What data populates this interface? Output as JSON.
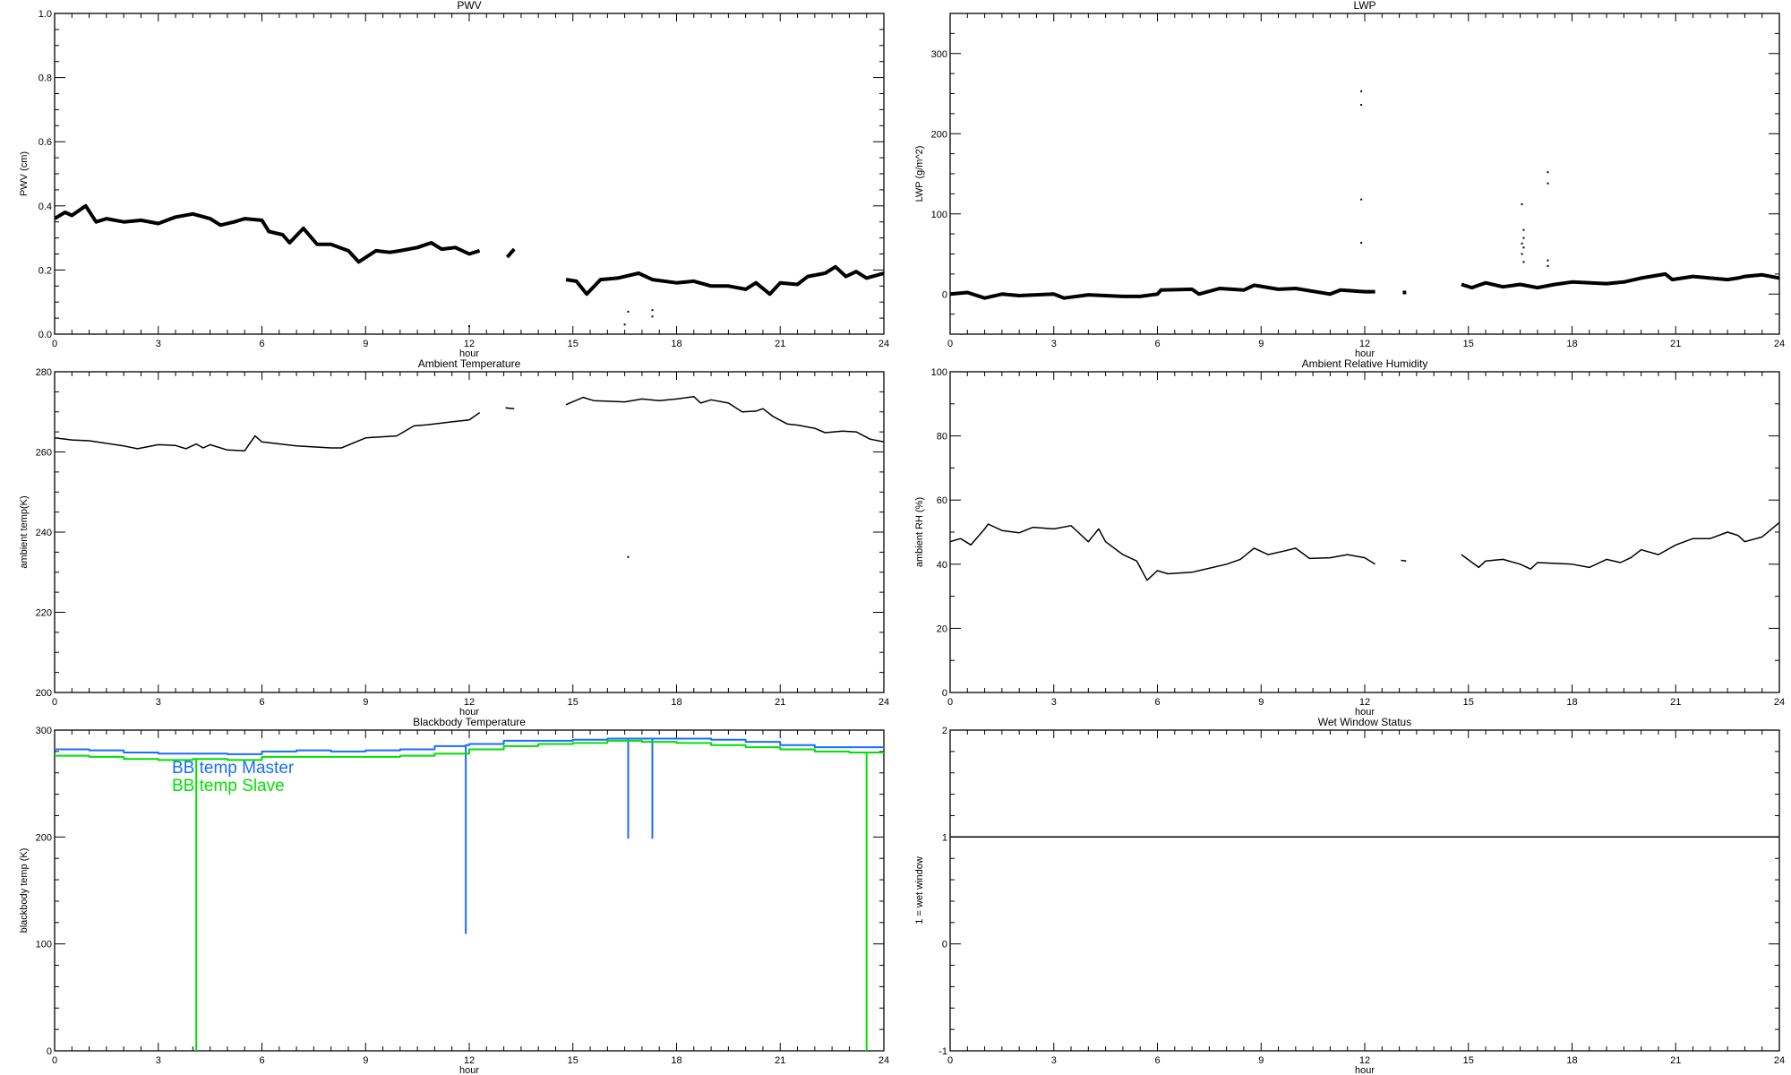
{
  "chart_data": [
    {
      "type": "line",
      "title": "PWV",
      "xlabel": "hour",
      "ylabel": "PWV (cm)",
      "xlim": [
        0,
        24
      ],
      "ylim": [
        0,
        1
      ],
      "xticks": [
        "0",
        "3",
        "6",
        "9",
        "12",
        "15",
        "18",
        "21",
        "24"
      ],
      "yticks": [
        {
          "v": 0,
          "t": "0.0"
        },
        {
          "v": 0.2,
          "t": "0.2"
        },
        {
          "v": 0.4,
          "t": "0.4"
        },
        {
          "v": 0.6,
          "t": "0.6"
        },
        {
          "v": 0.8,
          "t": "0.8"
        },
        {
          "v": 1,
          "t": "1.0"
        }
      ],
      "yminor": 0.05,
      "series": [
        {
          "color": "#000000",
          "style": "noisy",
          "x": [
            0,
            0.3,
            0.5,
            0.9,
            1.2,
            1.5,
            2,
            2.5,
            3,
            3.5,
            4,
            4.5,
            4.8,
            5.2,
            5.5,
            6,
            6.2,
            6.6,
            6.8,
            7.2,
            7.6,
            8,
            8.5,
            8.8,
            9.3,
            9.7,
            10,
            10.5,
            10.9,
            11.2,
            11.6,
            12,
            12.3,
            null,
            13.1,
            13.3,
            null,
            14.8,
            15.1,
            15.4,
            15.8,
            16.3,
            16.9,
            17.3,
            18,
            18.5,
            19,
            19.5,
            20,
            20.3,
            20.7,
            21,
            21.5,
            21.8,
            22.3,
            22.6,
            22.9,
            23.2,
            23.5,
            24
          ],
          "y": [
            0.36,
            0.38,
            0.37,
            0.4,
            0.35,
            0.36,
            0.35,
            0.355,
            0.345,
            0.365,
            0.375,
            0.36,
            0.34,
            0.35,
            0.36,
            0.355,
            0.32,
            0.31,
            0.285,
            0.33,
            0.28,
            0.28,
            0.26,
            0.225,
            0.26,
            0.255,
            0.26,
            0.27,
            0.285,
            0.265,
            0.27,
            0.25,
            0.26,
            null,
            0.24,
            0.265,
            null,
            0.17,
            0.165,
            0.125,
            0.17,
            0.175,
            0.19,
            0.17,
            0.16,
            0.165,
            0.15,
            0.15,
            0.14,
            0.16,
            0.125,
            0.16,
            0.155,
            0.18,
            0.19,
            0.21,
            0.18,
            0.195,
            0.175,
            0.19
          ]
        }
      ],
      "points": [
        [
          12,
          0.025
        ],
        [
          16.5,
          0.03
        ],
        [
          16.6,
          0.07
        ],
        [
          17.3,
          0.075
        ],
        [
          17.3,
          0.055
        ]
      ]
    },
    {
      "type": "line",
      "title": "LWP",
      "xlabel": "hour",
      "ylabel": "LWP (g/m^2)",
      "xlim": [
        0,
        24
      ],
      "ylim": [
        -50,
        350
      ],
      "xticks": [
        "0",
        "3",
        "6",
        "9",
        "12",
        "15",
        "18",
        "21",
        "24"
      ],
      "yticks": [
        {
          "v": 0,
          "t": "0"
        },
        {
          "v": 100,
          "t": "100"
        },
        {
          "v": 200,
          "t": "200"
        },
        {
          "v": 300,
          "t": "300"
        }
      ],
      "yminor": 25,
      "series": [
        {
          "color": "#000000",
          "style": "noisy",
          "x": [
            0,
            0.5,
            1,
            1.5,
            2,
            3,
            3.3,
            4,
            5,
            5.5,
            6,
            6.1,
            7,
            7.2,
            7.8,
            8.5,
            8.8,
            9.5,
            10,
            11,
            11.3,
            12,
            12.3,
            null,
            13.1,
            13.2,
            null,
            14.8,
            15.1,
            15.5,
            16,
            16.5,
            17,
            17.5,
            18,
            19,
            19.5,
            20,
            20.7,
            20.9,
            21.5,
            22,
            22.5,
            22.8,
            23,
            23.5,
            24
          ],
          "y": [
            0,
            2,
            -5,
            0,
            -2,
            0,
            -5,
            -1,
            -3,
            -3,
            0,
            5,
            6,
            0,
            7,
            5,
            11,
            6,
            7,
            0,
            5,
            3,
            3,
            null,
            2,
            2,
            null,
            12,
            8,
            14,
            9,
            12,
            8,
            12,
            15,
            13,
            15,
            20,
            25,
            18,
            22,
            20,
            18,
            20,
            22,
            24,
            20
          ]
        }
      ],
      "points": [
        [
          11.9,
          253
        ],
        [
          11.9,
          236
        ],
        [
          11.9,
          118
        ],
        [
          11.9,
          64
        ],
        [
          16.55,
          112
        ],
        [
          16.6,
          80
        ],
        [
          16.6,
          70
        ],
        [
          16.55,
          63
        ],
        [
          16.6,
          58
        ],
        [
          16.55,
          50
        ],
        [
          16.6,
          40
        ],
        [
          17.3,
          152
        ],
        [
          17.3,
          138
        ],
        [
          17.3,
          42
        ],
        [
          17.3,
          35
        ]
      ]
    },
    {
      "type": "line",
      "title": "Ambient Temperature",
      "xlabel": "hour",
      "ylabel": "ambient temp(K)",
      "xlim": [
        0,
        24
      ],
      "ylim": [
        200,
        280
      ],
      "xticks": [
        "0",
        "3",
        "6",
        "9",
        "12",
        "15",
        "18",
        "21",
        "24"
      ],
      "yticks": [
        {
          "v": 200,
          "t": "200"
        },
        {
          "v": 220,
          "t": "220"
        },
        {
          "v": 240,
          "t": "240"
        },
        {
          "v": 260,
          "t": "260"
        },
        {
          "v": 280,
          "t": "280"
        }
      ],
      "yminor": 5,
      "series": [
        {
          "color": "#000000",
          "style": "line",
          "x": [
            0,
            0.5,
            1,
            2,
            2.4,
            3,
            3.5,
            3.8,
            4.1,
            4.3,
            4.5,
            5,
            5.5,
            5.8,
            6,
            7,
            8,
            8.3,
            9,
            9.9,
            10.4,
            10.8,
            11.5,
            12,
            12.3,
            null,
            13.05,
            13.3,
            null,
            14.8,
            15.3,
            15.6,
            16.5,
            17,
            17.5,
            18,
            18.5,
            18.7,
            19,
            19.5,
            19.9,
            20.3,
            20.5,
            20.8,
            21.2,
            21.5,
            22,
            22.3,
            22.8,
            23.2,
            23.6,
            24
          ],
          "y": [
            263.5,
            263,
            262.8,
            261.5,
            260.8,
            261.8,
            261.6,
            260.8,
            262,
            261,
            261.8,
            260.5,
            260.3,
            264,
            262.5,
            261.5,
            261,
            261,
            263.5,
            264,
            266.5,
            266.8,
            267.5,
            268,
            269.8,
            null,
            271,
            270.8,
            null,
            271.8,
            273.6,
            272.8,
            272.5,
            273.2,
            272.8,
            273.2,
            273.8,
            272.2,
            273,
            272.2,
            270,
            270.2,
            270.8,
            268.8,
            267,
            266.7,
            265.9,
            264.8,
            265.2,
            265,
            263.2,
            262.5
          ]
        }
      ],
      "points": [
        [
          16.6,
          233.8
        ]
      ]
    },
    {
      "type": "line",
      "title": "Ambient Relative Humidity",
      "xlabel": "hour",
      "ylabel": "ambient RH (%)",
      "xlim": [
        0,
        24
      ],
      "ylim": [
        0,
        100
      ],
      "xticks": [
        "0",
        "3",
        "6",
        "9",
        "12",
        "15",
        "18",
        "21",
        "24"
      ],
      "yticks": [
        {
          "v": 0,
          "t": "0"
        },
        {
          "v": 20,
          "t": "20"
        },
        {
          "v": 40,
          "t": "40"
        },
        {
          "v": 60,
          "t": "60"
        },
        {
          "v": 80,
          "t": "80"
        },
        {
          "v": 100,
          "t": "100"
        }
      ],
      "yminor": 10,
      "series": [
        {
          "color": "#000000",
          "style": "line",
          "x": [
            0,
            0.3,
            0.6,
            1,
            1.1,
            1.5,
            2,
            2.4,
            3,
            3.5,
            3.7,
            4,
            4.3,
            4.5,
            5,
            5.4,
            5.7,
            6,
            6.3,
            7,
            8,
            8.4,
            8.8,
            9.2,
            9.7,
            10,
            10.4,
            11,
            11.5,
            12,
            12.3,
            null,
            13.05,
            13.2,
            null,
            14.8,
            15.3,
            15.5,
            16,
            16.5,
            16.8,
            17,
            18,
            18.5,
            19,
            19.4,
            19.7,
            20,
            20.5,
            21,
            21.5,
            22,
            22.5,
            22.8,
            23,
            23.5,
            24
          ],
          "y": [
            47,
            48,
            46,
            51,
            52.5,
            50.5,
            49.8,
            51.5,
            51,
            52,
            50,
            47,
            51,
            47,
            43,
            41,
            35,
            38,
            37,
            37.5,
            40,
            41.5,
            45,
            43,
            44.2,
            45,
            41.8,
            42,
            43,
            42,
            40,
            null,
            41.2,
            41,
            null,
            43,
            39,
            41,
            41.5,
            40,
            38.5,
            40.5,
            40,
            39,
            41.5,
            40.5,
            42,
            44.5,
            43,
            46,
            48,
            48,
            50,
            49,
            47,
            48.5,
            53
          ]
        }
      ],
      "points": []
    },
    {
      "type": "line",
      "title": "Blackbody Temperature",
      "xlabel": "hour",
      "ylabel": "blackbody temp (K)",
      "xlim": [
        0,
        24
      ],
      "ylim": [
        0,
        300
      ],
      "xticks": [
        "0",
        "3",
        "6",
        "9",
        "12",
        "15",
        "18",
        "21",
        "24"
      ],
      "yticks": [
        {
          "v": 0,
          "t": "0"
        },
        {
          "v": 100,
          "t": "100"
        },
        {
          "v": 200,
          "t": "200"
        },
        {
          "v": 300,
          "t": "300"
        }
      ],
      "yminor": 20,
      "legend": "top-left",
      "series": [
        {
          "name": "BB temp Master",
          "color": "#1a6cff",
          "style": "step",
          "x": [
            0,
            1,
            2,
            3,
            4,
            5,
            6,
            7,
            8,
            9,
            10,
            11,
            11.9,
            11.9,
            11.9,
            12,
            13,
            14,
            15,
            16,
            16.6,
            16.6,
            16.6,
            17,
            17.3,
            17.3,
            17.3,
            18,
            19,
            20,
            21,
            22,
            23,
            24
          ],
          "y": [
            282,
            281,
            279,
            278,
            278,
            277.5,
            280,
            281,
            280,
            281,
            282,
            285,
            286,
            110,
            286,
            287,
            290,
            290,
            291,
            292,
            292,
            199,
            292,
            292,
            292,
            199,
            292,
            292,
            291,
            289,
            286,
            284,
            284,
            283
          ]
        },
        {
          "name": "BB temp Slave",
          "color": "#00e000",
          "style": "step",
          "x": [
            0,
            1,
            2,
            3,
            4,
            4.1,
            4.1,
            4.1,
            5,
            6,
            8,
            9,
            10,
            11,
            12,
            13,
            14,
            15,
            16,
            17,
            18,
            19,
            20,
            21,
            22,
            23,
            23.5,
            23.5,
            23.5,
            24
          ],
          "y": [
            276,
            275,
            273,
            272,
            273,
            273,
            0,
            273,
            272,
            275,
            275,
            275,
            276,
            278,
            282,
            285,
            287,
            288,
            290,
            289,
            288,
            286,
            284,
            282,
            280,
            279,
            279,
            0,
            279,
            279
          ]
        }
      ],
      "points": []
    },
    {
      "type": "line",
      "title": "Wet Window Status",
      "xlabel": "hour",
      "ylabel": "1 = wet window",
      "xlim": [
        0,
        24
      ],
      "ylim": [
        -1,
        2
      ],
      "xticks": [
        "0",
        "3",
        "6",
        "9",
        "12",
        "15",
        "18",
        "21",
        "24"
      ],
      "yticks": [
        {
          "v": -1,
          "t": "-1"
        },
        {
          "v": 0,
          "t": "0"
        },
        {
          "v": 1,
          "t": "1"
        },
        {
          "v": 2,
          "t": "2"
        }
      ],
      "yminor": 0.2,
      "series": [
        {
          "color": "#000000",
          "style": "line",
          "x": [
            0,
            24
          ],
          "y": [
            1,
            1
          ]
        }
      ],
      "points": []
    }
  ]
}
